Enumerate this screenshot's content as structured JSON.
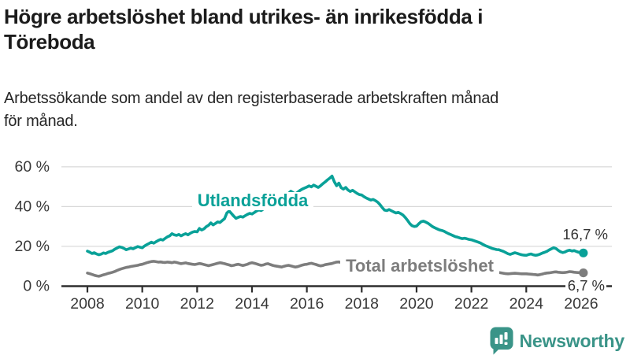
{
  "header": {
    "title_lines": [
      "Högre arbetslöshet bland utrikes- än inrikesfödda i",
      "Töreboda"
    ],
    "subtitle_lines": [
      "Arbetssökande som andel av den registerbaserade arbetskraften månad",
      "för månad."
    ]
  },
  "chart_data": {
    "type": "line",
    "x_unit": "month",
    "x_start": "2008-01",
    "x_end": "2026-02",
    "grid": "horizontal",
    "ylim": [
      0,
      65
    ],
    "x_tick_labels": [
      "2008",
      "2010",
      "2012",
      "2014",
      "2016",
      "2018",
      "2020",
      "2022",
      "2024",
      "2026"
    ],
    "y_ticks": [
      {
        "value": 0,
        "label": "0 %"
      },
      {
        "value": 20,
        "label": "20 %"
      },
      {
        "value": 40,
        "label": "40 %"
      },
      {
        "value": 60,
        "label": "60 %"
      }
    ],
    "series": [
      {
        "name": "Utlandsfödda",
        "color": "#09a198",
        "end_label": "16,7 %",
        "last_value": 16.7,
        "values": [
          17.6,
          17.1,
          16.4,
          16.8,
          16.2,
          15.8,
          16.1,
          16.7,
          16.4,
          17.0,
          17.4,
          17.8,
          18.6,
          19.2,
          19.8,
          19.5,
          19.0,
          18.3,
          18.7,
          19.1,
          18.8,
          19.4,
          19.9,
          19.6,
          19.3,
          20.2,
          20.9,
          21.5,
          22.1,
          21.6,
          22.3,
          23.0,
          23.5,
          23.2,
          24.0,
          24.8,
          25.3,
          26.4,
          25.8,
          25.5,
          26.0,
          25.3,
          25.9,
          26.4,
          25.8,
          26.6,
          27.2,
          27.5,
          27.3,
          29.0,
          28.2,
          28.8,
          29.9,
          30.6,
          31.8,
          30.8,
          31.5,
          32.3,
          32.0,
          33.0,
          33.9,
          36.8,
          37.8,
          36.5,
          35.2,
          34.1,
          34.6,
          35.0,
          34.7,
          35.4,
          36.1,
          36.6,
          36.3,
          37.0,
          37.8,
          38.3,
          38.0,
          38.8,
          39.5,
          40.2,
          40.8,
          41.5,
          42.0,
          42.6,
          43.2,
          44.0,
          44.8,
          45.6,
          46.6,
          47.7,
          47.0,
          46.4,
          47.2,
          48.1,
          48.8,
          49.3,
          49.8,
          50.4,
          49.9,
          50.8,
          50.2,
          49.6,
          50.5,
          51.5,
          52.4,
          53.4,
          54.3,
          55.3,
          52.5,
          50.5,
          51.8,
          49.5,
          48.8,
          49.6,
          48.3,
          47.6,
          48.2,
          47.4,
          46.6,
          46.0,
          45.8,
          45.0,
          44.3,
          43.8,
          43.3,
          43.6,
          43.0,
          42.2,
          41.0,
          39.5,
          38.2,
          38.0,
          38.5,
          37.9,
          37.3,
          36.8,
          37.1,
          36.5,
          35.8,
          34.6,
          33.2,
          31.5,
          30.4,
          30.0,
          30.2,
          31.4,
          32.4,
          32.7,
          32.2,
          31.6,
          30.8,
          29.9,
          29.3,
          28.8,
          28.3,
          28.0,
          27.6,
          27.0,
          26.4,
          25.9,
          25.4,
          24.9,
          24.6,
          24.2,
          23.9,
          24.1,
          23.8,
          23.5,
          23.3,
          22.9,
          22.5,
          22.1,
          21.7,
          21.0,
          20.4,
          20.0,
          19.5,
          19.0,
          18.7,
          18.4,
          18.3,
          17.9,
          17.5,
          16.9,
          16.3,
          16.0,
          16.4,
          16.8,
          16.5,
          16.1,
          15.8,
          15.6,
          15.5,
          15.9,
          16.2,
          15.8,
          15.5,
          15.7,
          16.1,
          16.6,
          17.0,
          17.5,
          18.2,
          18.8,
          19.3,
          18.9,
          18.0,
          17.3,
          16.9,
          17.2,
          17.8,
          18.1,
          17.7,
          17.9,
          17.4,
          17.0,
          17.2,
          16.7
        ]
      },
      {
        "name": "Total arbetslöshet",
        "color": "#7d7d7d",
        "end_label": "6,7 %",
        "last_value": 6.7,
        "values": [
          6.6,
          6.3,
          5.9,
          5.5,
          5.2,
          5.0,
          5.3,
          5.7,
          6.0,
          6.4,
          6.7,
          7.0,
          7.4,
          7.9,
          8.4,
          8.8,
          9.1,
          9.4,
          9.6,
          9.9,
          10.1,
          10.3,
          10.5,
          10.8,
          11.0,
          11.4,
          11.8,
          12.1,
          12.4,
          12.5,
          12.3,
          12.1,
          12.2,
          12.0,
          11.9,
          12.1,
          12.0,
          11.8,
          12.1,
          11.9,
          11.6,
          11.3,
          11.5,
          11.7,
          11.4,
          11.2,
          11.0,
          10.9,
          11.1,
          11.4,
          11.2,
          10.9,
          10.6,
          10.3,
          10.6,
          10.9,
          11.2,
          11.5,
          11.8,
          11.6,
          11.3,
          11.0,
          10.7,
          10.3,
          10.5,
          10.8,
          11.0,
          10.7,
          10.4,
          10.7,
          11.0,
          11.5,
          11.8,
          11.5,
          11.2,
          10.8,
          10.5,
          10.7,
          11.1,
          11.3,
          10.9,
          10.5,
          10.2,
          10.0,
          9.8,
          9.6,
          10.0,
          10.3,
          10.5,
          10.2,
          9.9,
          9.6,
          9.8,
          10.2,
          10.6,
          10.9,
          11.0,
          11.3,
          11.5,
          11.2,
          10.9,
          10.5,
          10.2,
          10.4,
          10.8,
          11.0,
          11.2,
          11.4,
          11.8,
          12.1,
          12.2,
          11.9,
          11.5,
          11.1,
          10.8,
          10.5,
          10.3,
          10.1,
          9.9,
          9.8,
          9.7,
          9.5,
          9.4,
          9.2,
          9.1,
          8.9,
          8.8,
          8.7,
          8.6,
          8.5,
          8.4,
          8.3,
          8.2,
          8.1,
          8.0,
          7.9,
          7.8,
          7.8,
          7.7,
          7.6,
          7.6,
          7.7,
          7.8,
          8.0,
          8.2,
          8.6,
          9.2,
          9.6,
          9.5,
          9.3,
          9.2,
          9.0,
          8.9,
          8.8,
          8.7,
          8.6,
          8.5,
          8.4,
          8.3,
          8.2,
          8.0,
          7.9,
          7.8,
          7.7,
          7.6,
          7.5,
          7.4,
          7.3,
          7.3,
          7.2,
          7.1,
          7.1,
          7.0,
          7.0,
          6.9,
          6.9,
          6.9,
          6.9,
          6.9,
          6.9,
          6.9,
          6.7,
          6.5,
          6.3,
          6.2,
          6.3,
          6.4,
          6.5,
          6.4,
          6.3,
          6.2,
          6.2,
          6.2,
          6.1,
          6.0,
          5.9,
          5.8,
          5.6,
          5.8,
          6.1,
          6.4,
          6.6,
          6.7,
          6.9,
          7.1,
          7.2,
          7.0,
          6.9,
          6.8,
          6.9,
          7.1,
          7.3,
          7.2,
          7.0,
          6.9,
          6.8,
          6.8,
          6.7
        ]
      }
    ],
    "colors": {
      "foreign_born": "#09a198",
      "total": "#7d7d7d",
      "grid": "#d8d8d8",
      "axis": "#2f2f2f"
    }
  },
  "footer": {
    "brand": "Newsworthy",
    "brand_color": "#3a9488",
    "logo_icon": "bar-chart-pin-icon"
  }
}
